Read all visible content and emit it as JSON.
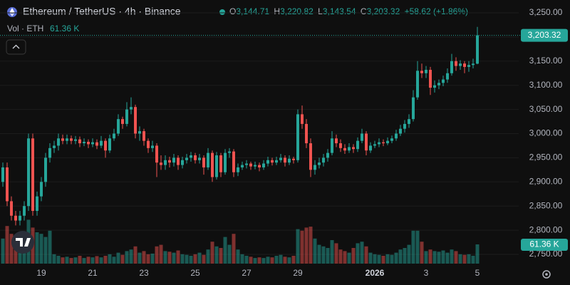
{
  "header": {
    "title": "Ethereum / TetherUS · 4h · Binance",
    "ohlc": [
      {
        "key": "O",
        "value": "3,144.71"
      },
      {
        "key": "H",
        "value": "3,220.82"
      },
      {
        "key": "L",
        "value": "3,143.54"
      },
      {
        "key": "C",
        "value": "3,203.32"
      }
    ],
    "change": "+58.62 (+1.86%)",
    "volume_title": "Vol · ETH",
    "volume_value": "61.36 K"
  },
  "chart_data": {
    "type": "candlestick",
    "up_color": "#26a69a",
    "down_color": "#ef5350",
    "grid": true,
    "categories": [
      null,
      null,
      null,
      null,
      null,
      null,
      null,
      null,
      null,
      "19",
      null,
      null,
      null,
      null,
      null,
      null,
      null,
      null,
      null,
      null,
      null,
      "21",
      null,
      null,
      null,
      null,
      null,
      null,
      null,
      null,
      null,
      null,
      null,
      "23",
      null,
      null,
      null,
      null,
      null,
      null,
      null,
      null,
      null,
      null,
      null,
      "25",
      null,
      null,
      null,
      null,
      null,
      null,
      null,
      null,
      null,
      null,
      null,
      "27",
      null,
      null,
      null,
      null,
      null,
      null,
      null,
      null,
      null,
      null,
      null,
      "29",
      null,
      null,
      null,
      null,
      null,
      null,
      null,
      null,
      null,
      null,
      null,
      null,
      null,
      null,
      null,
      null,
      null,
      "2026",
      null,
      null,
      null,
      null,
      null,
      null,
      null,
      null,
      null,
      null,
      null,
      "3",
      null,
      null,
      null,
      null,
      null,
      null,
      null,
      null,
      null,
      null,
      null,
      "5"
    ],
    "open": [
      2900,
      2930,
      2860,
      2830,
      2820,
      2830,
      2850,
      2990,
      2840,
      2870,
      2900,
      2950,
      2970,
      2975,
      2990,
      2985,
      2990,
      2985,
      2988,
      2980,
      2983,
      2978,
      2982,
      2975,
      2985,
      2965,
      2990,
      3000,
      3030,
      3020,
      3050,
      3055,
      3000,
      3005,
      2985,
      2970,
      2975,
      2940,
      2935,
      2945,
      2940,
      2950,
      2935,
      2945,
      2950,
      2955,
      2945,
      2950,
      2930,
      2960,
      2910,
      2955,
      2920,
      2960,
      2963,
      2920,
      2930,
      2935,
      2938,
      2932,
      2935,
      2930,
      2938,
      2945,
      2940,
      2945,
      2950,
      2940,
      2948,
      2945,
      3040,
      3020,
      2980,
      2925,
      2935,
      2940,
      2950,
      2960,
      2990,
      2980,
      2970,
      2965,
      2972,
      2968,
      2985,
      3000,
      2965,
      2975,
      2978,
      2982,
      2980,
      2985,
      2990,
      3000,
      3010,
      3020,
      3030,
      3075,
      3130,
      3125,
      3132,
      3095,
      3100,
      3105,
      3112,
      3125,
      3150,
      3140,
      3145,
      3138,
      3142,
      3144.71
    ],
    "high": [
      2940,
      2940,
      2870,
      2840,
      2840,
      2860,
      3000,
      3000,
      2880,
      2910,
      2960,
      2980,
      2985,
      3000,
      2998,
      2998,
      2996,
      2995,
      2994,
      2990,
      2988,
      2990,
      2988,
      2995,
      2990,
      2998,
      3010,
      3040,
      3035,
      3065,
      3075,
      3060,
      3015,
      3010,
      2990,
      2985,
      2980,
      2955,
      2955,
      2952,
      2958,
      2955,
      2952,
      2958,
      2962,
      2960,
      2958,
      2955,
      2970,
      2965,
      2962,
      2960,
      2968,
      2970,
      2968,
      2938,
      2942,
      2945,
      2942,
      2942,
      2940,
      2945,
      2952,
      2950,
      2952,
      2958,
      2955,
      2955,
      2952,
      3050,
      3058,
      3030,
      2990,
      2945,
      2950,
      2958,
      2968,
      3005,
      2998,
      2988,
      2978,
      2980,
      2978,
      2992,
      3010,
      3005,
      2982,
      2985,
      2990,
      2988,
      2992,
      2996,
      3008,
      3018,
      3028,
      3040,
      3090,
      3150,
      3145,
      3140,
      3138,
      3110,
      3112,
      3120,
      3135,
      3165,
      3158,
      3152,
      3150,
      3150,
      3155,
      3220.82
    ],
    "low": [
      2890,
      2850,
      2820,
      2810,
      2810,
      2820,
      2840,
      2830,
      2830,
      2860,
      2890,
      2940,
      2960,
      2965,
      2978,
      2978,
      2978,
      2978,
      2972,
      2974,
      2970,
      2972,
      2968,
      2970,
      2950,
      2960,
      2985,
      2995,
      3010,
      3015,
      3040,
      2990,
      2985,
      2975,
      2960,
      2962,
      2910,
      2925,
      2925,
      2930,
      2932,
      2925,
      2928,
      2938,
      2942,
      2938,
      2938,
      2915,
      2925,
      2900,
      2905,
      2910,
      2915,
      2950,
      2910,
      2912,
      2925,
      2928,
      2925,
      2926,
      2922,
      2925,
      2932,
      2934,
      2935,
      2940,
      2932,
      2935,
      2938,
      2940,
      3010,
      2970,
      2910,
      2915,
      2928,
      2932,
      2942,
      2955,
      2972,
      2962,
      2958,
      2960,
      2960,
      2962,
      2980,
      2955,
      2960,
      2970,
      2972,
      2974,
      2976,
      2980,
      2985,
      2995,
      3002,
      3012,
      3025,
      3070,
      3115,
      3115,
      3080,
      3085,
      3092,
      3098,
      3105,
      3120,
      3130,
      3132,
      3125,
      3128,
      3135,
      3143.54
    ],
    "close": [
      2930,
      2860,
      2830,
      2820,
      2830,
      2850,
      2990,
      2840,
      2870,
      2900,
      2950,
      2970,
      2975,
      2990,
      2985,
      2990,
      2985,
      2988,
      2980,
      2983,
      2978,
      2982,
      2975,
      2985,
      2965,
      2990,
      3000,
      3030,
      3020,
      3050,
      3055,
      3000,
      3005,
      2985,
      2970,
      2975,
      2940,
      2935,
      2945,
      2940,
      2950,
      2935,
      2945,
      2950,
      2955,
      2945,
      2950,
      2930,
      2960,
      2910,
      2955,
      2920,
      2960,
      2963,
      2920,
      2930,
      2935,
      2938,
      2932,
      2935,
      2930,
      2938,
      2945,
      2940,
      2945,
      2950,
      2940,
      2948,
      2945,
      3040,
      3020,
      2980,
      2925,
      2935,
      2940,
      2950,
      2960,
      2990,
      2980,
      2970,
      2965,
      2972,
      2968,
      2985,
      3000,
      2965,
      2975,
      2978,
      2982,
      2980,
      2985,
      2990,
      3000,
      3010,
      3020,
      3030,
      3075,
      3130,
      3125,
      3132,
      3095,
      3100,
      3105,
      3112,
      3125,
      3150,
      3140,
      3145,
      3138,
      3142,
      3144.71,
      3203.32
    ],
    "volume": [
      80000,
      120000,
      95000,
      70000,
      60000,
      75000,
      140000,
      115000,
      100000,
      95000,
      85000,
      105000,
      30000,
      25000,
      20000,
      22000,
      18000,
      20000,
      25000,
      18000,
      22000,
      20000,
      24000,
      20000,
      25000,
      30000,
      22000,
      35000,
      28000,
      40000,
      45000,
      55000,
      35000,
      40000,
      30000,
      32000,
      55000,
      60000,
      40000,
      38000,
      35000,
      42000,
      30000,
      28000,
      25000,
      30000,
      35000,
      28000,
      45000,
      70000,
      55000,
      50000,
      85000,
      60000,
      95000,
      45000,
      30000,
      25000,
      22000,
      18000,
      20000,
      18000,
      22000,
      20000,
      25000,
      28000,
      22000,
      20000,
      25000,
      110000,
      105000,
      115000,
      118000,
      80000,
      60000,
      55000,
      50000,
      75000,
      65000,
      45000,
      40000,
      35000,
      50000,
      65000,
      70000,
      55000,
      35000,
      30000,
      28000,
      25000,
      30000,
      28000,
      35000,
      45000,
      50000,
      60000,
      105000,
      105000,
      70000,
      40000,
      45000,
      40000,
      38000,
      42000,
      35000,
      45000,
      40000,
      30000,
      28000,
      30000,
      25000,
      61360
    ],
    "ylim": [
      2750,
      3250
    ],
    "yticks": [
      {
        "value": 2750,
        "label": "2,750.00"
      },
      {
        "value": 2800,
        "label": "2,800.00"
      },
      {
        "value": 2850,
        "label": "2,850.00"
      },
      {
        "value": 2900,
        "label": "2,900.00"
      },
      {
        "value": 2950,
        "label": "2,950.00"
      },
      {
        "value": 3000,
        "label": "3,000.00"
      },
      {
        "value": 3050,
        "label": "3,050.00"
      },
      {
        "value": 3100,
        "label": "3,100.00"
      },
      {
        "value": 3150,
        "label": "3,150.00"
      },
      {
        "value": 3200,
        "label": "3,200.00"
      },
      {
        "value": 3250,
        "label": "3,250.00"
      }
    ]
  }
}
